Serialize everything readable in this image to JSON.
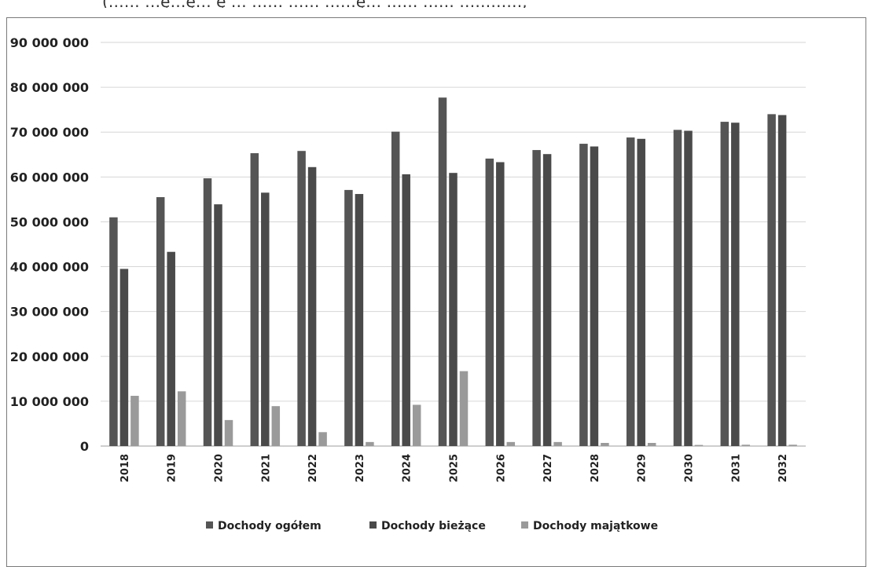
{
  "header_text": "(…… …ę…ę… ę … …… …… ……ę… …… …… …………,",
  "chart_data": {
    "type": "bar",
    "title": "",
    "xlabel": "",
    "ylabel": "",
    "ylim": [
      0,
      90000000
    ],
    "yticks": [
      0,
      10000000,
      20000000,
      30000000,
      40000000,
      50000000,
      60000000,
      70000000,
      80000000,
      90000000
    ],
    "ytick_labels": [
      "0",
      "10 000 000",
      "20 000 000",
      "30 000 000",
      "40 000 000",
      "50 000 000",
      "60 000 000",
      "70 000 000",
      "80 000 000",
      "90 000 000"
    ],
    "grid": true,
    "legend_position": "bottom",
    "categories": [
      "2018",
      "2019",
      "2020",
      "2021",
      "2022",
      "2023",
      "2024",
      "2025",
      "2026",
      "2027",
      "2028",
      "2029",
      "2030",
      "2031",
      "2032"
    ],
    "series": [
      {
        "name": "Dochody ogółem",
        "color": "#555555",
        "values": [
          51000000,
          55500000,
          59700000,
          65300000,
          65800000,
          57100000,
          70100000,
          77700000,
          64100000,
          66000000,
          67400000,
          68800000,
          70500000,
          72300000,
          74000000
        ]
      },
      {
        "name": "Dochody bieżące",
        "color": "#4a4a4a",
        "values": [
          39500000,
          43300000,
          53900000,
          56500000,
          62200000,
          56200000,
          60600000,
          60900000,
          63300000,
          65100000,
          66800000,
          68500000,
          70300000,
          72100000,
          73800000
        ]
      },
      {
        "name": "Dochody majątkowe",
        "color": "#9a9a9a",
        "values": [
          11200000,
          12200000,
          5800000,
          8900000,
          3100000,
          900000,
          9200000,
          16700000,
          900000,
          900000,
          700000,
          700000,
          250000,
          300000,
          300000
        ]
      }
    ]
  }
}
